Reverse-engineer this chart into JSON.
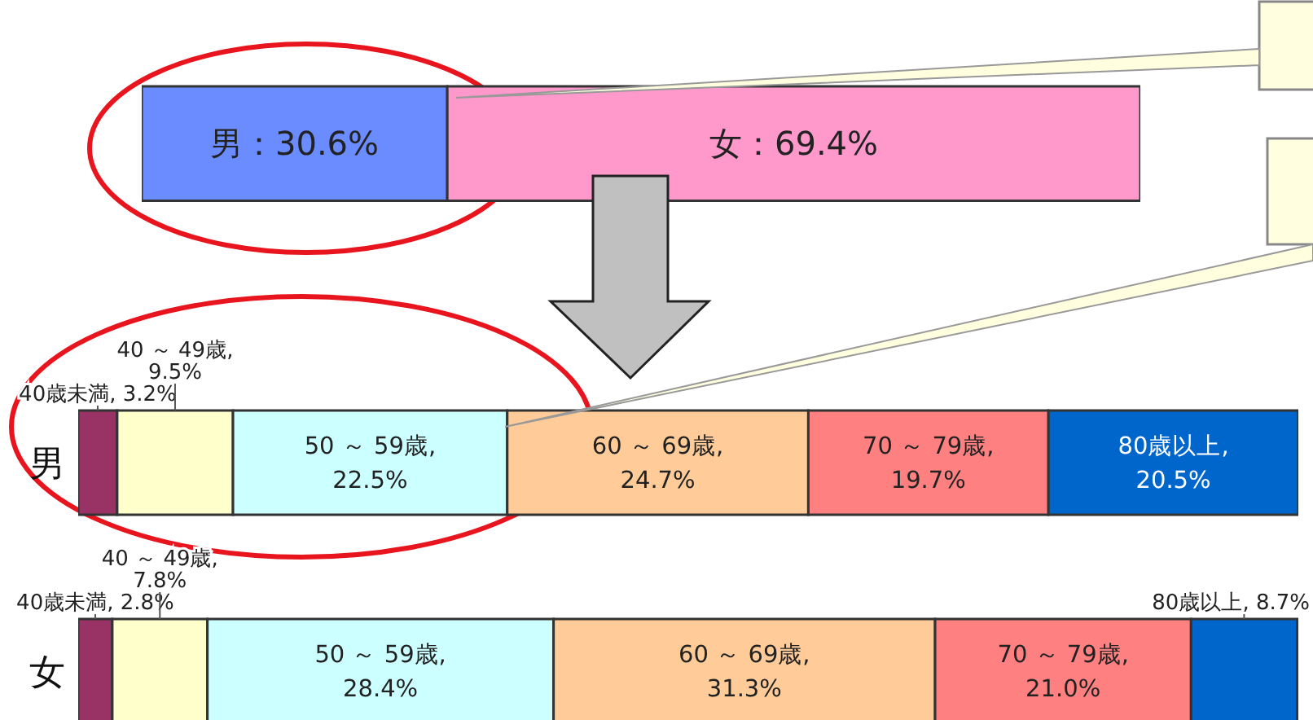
{
  "chart_data": [
    {
      "type": "bar",
      "orientation": "horizontal",
      "stacked": true,
      "categories": [
        null
      ],
      "tick_labels": false,
      "series": [
        {
          "color": "#6b8cff",
          "values": [
            30.6
          ],
          "value_labels": [
            "男：30.6%"
          ]
        },
        {
          "color": "#ff99cc",
          "values": [
            69.4
          ],
          "value_labels": [
            "女：69.4%"
          ]
        }
      ]
    },
    {
      "type": "bar",
      "orientation": "horizontal",
      "stacked": true,
      "categories": [
        "男",
        "女"
      ],
      "tick_labels": "y",
      "series": [
        {
          "color": "#993366",
          "values": [
            3.2,
            2.8
          ],
          "value_labels": [
            "40歳未満, 3.2%",
            "40歳未満, 2.8%"
          ]
        },
        {
          "color": "#ffffcc",
          "values": [
            9.5,
            7.8
          ],
          "value_labels": [
            "40 ～ 49歳,\n9.5%",
            "40 ～ 49歳,\n7.8%"
          ]
        },
        {
          "color": "#ccffff",
          "values": [
            22.5,
            28.4
          ],
          "value_labels": [
            "50 ～ 59歳,\n22.5%",
            "50 ～ 59歳,\n28.4%"
          ]
        },
        {
          "color": "#ffcc99",
          "values": [
            24.7,
            31.3
          ],
          "value_labels": [
            "60 ～ 69歳,\n24.7%",
            "60 ～ 69歳,\n31.3%"
          ]
        },
        {
          "color": "#ff8080",
          "values": [
            19.7,
            21.0
          ],
          "value_labels": [
            "70 ～ 79歳,\n19.7%",
            "70 ～ 79歳,\n21.0%"
          ]
        },
        {
          "color": "#0066cc",
          "values": [
            20.5,
            8.7
          ],
          "value_labels": [
            "80歳以上,\n20.5%",
            "80歳以上, 8.7%"
          ]
        }
      ]
    }
  ]
}
